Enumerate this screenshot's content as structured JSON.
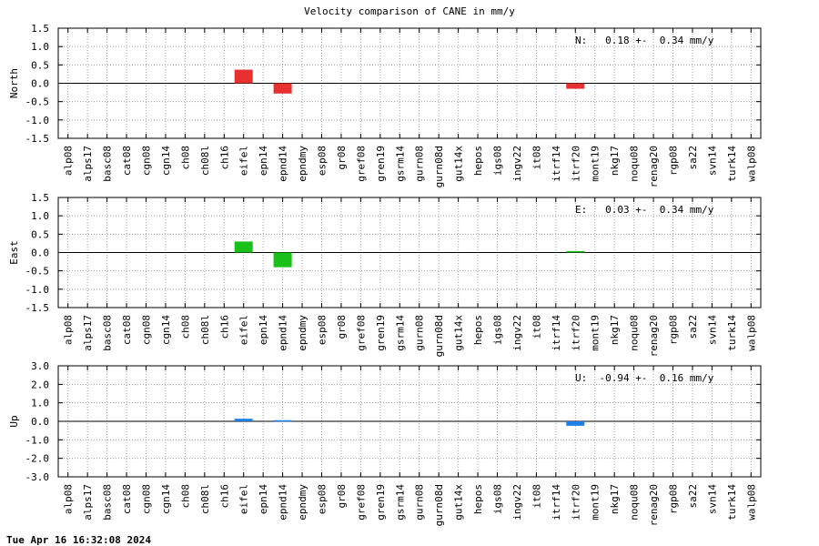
{
  "title": "Velocity comparison of CANE in mm/y",
  "footer": "Tue Apr 16 16:32:08 2024",
  "chart_data": [
    {
      "type": "bar",
      "ylabel": "North",
      "ylim": [
        -1.5,
        1.5
      ],
      "yticks": [
        "1.5",
        "1.0",
        "0.5",
        "0.0",
        "-0.5",
        "-1.0",
        "-1.5"
      ],
      "yticks_values": [
        1.5,
        1.0,
        0.5,
        0.0,
        -0.5,
        -1.0,
        -1.5
      ],
      "color": "#e83030",
      "annotation": "N:   0.18 +-  0.34 mm/y",
      "grid": true,
      "categories": [
        "alp08",
        "alps17",
        "basc08",
        "cat08",
        "cgn08",
        "cgn14",
        "ch08",
        "ch08l",
        "ch16",
        "eifel",
        "epn14",
        "epnd14",
        "epndmy",
        "esp08",
        "gr08",
        "gref08",
        "gren19",
        "gsrm14",
        "gurn08",
        "gurn08d",
        "gut14x",
        "hepos",
        "igs08",
        "ingv22",
        "it08",
        "itrf14",
        "itrf20",
        "mont19",
        "nkg17",
        "noqu08",
        "renag20",
        "rgp08",
        "sa22",
        "svn14",
        "turk14",
        "walp08"
      ],
      "values": [
        0,
        0,
        0,
        0,
        0,
        0,
        0,
        0,
        0,
        0.37,
        0,
        -0.28,
        0,
        0,
        0,
        0,
        0,
        0,
        0,
        0,
        0,
        0,
        0,
        0,
        0,
        0,
        -0.15,
        0,
        0,
        0,
        0,
        0,
        0,
        0,
        0,
        0
      ]
    },
    {
      "type": "bar",
      "ylabel": "East",
      "ylim": [
        -1.5,
        1.5
      ],
      "yticks": [
        "1.5",
        "1.0",
        "0.5",
        "0.0",
        "-0.5",
        "-1.0",
        "-1.5"
      ],
      "yticks_values": [
        1.5,
        1.0,
        0.5,
        0.0,
        -0.5,
        -1.0,
        -1.5
      ],
      "color": "#18c018",
      "annotation": "E:   0.03 +-  0.34 mm/y",
      "grid": true,
      "categories": [
        "alp08",
        "alps17",
        "basc08",
        "cat08",
        "cgn08",
        "cgn14",
        "ch08",
        "ch08l",
        "ch16",
        "eifel",
        "epn14",
        "epnd14",
        "epndmy",
        "esp08",
        "gr08",
        "gref08",
        "gren19",
        "gsrm14",
        "gurn08",
        "gurn08d",
        "gut14x",
        "hepos",
        "igs08",
        "ingv22",
        "it08",
        "itrf14",
        "itrf20",
        "mont19",
        "nkg17",
        "noqu08",
        "renag20",
        "rgp08",
        "sa22",
        "svn14",
        "turk14",
        "walp08"
      ],
      "values": [
        0,
        0,
        0,
        0,
        0,
        0,
        0,
        0,
        0,
        0.3,
        0,
        -0.4,
        0,
        0,
        0,
        0,
        0,
        0,
        0,
        0,
        0,
        0,
        0,
        0,
        0,
        0,
        0.04,
        0,
        0,
        0,
        0,
        0,
        0,
        0,
        0,
        0
      ]
    },
    {
      "type": "bar",
      "ylabel": "Up",
      "ylim": [
        -3.0,
        3.0
      ],
      "yticks": [
        "3.0",
        "2.0",
        "1.0",
        "0.0",
        "-1.0",
        "-2.0",
        "-3.0"
      ],
      "yticks_values": [
        3.0,
        2.0,
        1.0,
        0.0,
        -1.0,
        -2.0,
        -3.0
      ],
      "color": "#1c7ee8",
      "annotation": "U:  -0.94 +-  0.16 mm/y",
      "grid": true,
      "categories": [
        "alp08",
        "alps17",
        "basc08",
        "cat08",
        "cgn08",
        "cgn14",
        "ch08",
        "ch08l",
        "ch16",
        "eifel",
        "epn14",
        "epnd14",
        "epndmy",
        "esp08",
        "gr08",
        "gref08",
        "gren19",
        "gsrm14",
        "gurn08",
        "gurn08d",
        "gut14x",
        "hepos",
        "igs08",
        "ingv22",
        "it08",
        "itrf14",
        "itrf20",
        "mont19",
        "nkg17",
        "noqu08",
        "renag20",
        "rgp08",
        "sa22",
        "svn14",
        "turk14",
        "walp08"
      ],
      "values": [
        0,
        0,
        0,
        0,
        0,
        0,
        0,
        0,
        0,
        0.14,
        0,
        0.06,
        0,
        0,
        0,
        0,
        0,
        0,
        0,
        0,
        0,
        0,
        0,
        0,
        0,
        0,
        -0.24,
        0,
        0,
        0,
        0,
        0,
        0,
        0,
        0,
        0
      ]
    }
  ]
}
